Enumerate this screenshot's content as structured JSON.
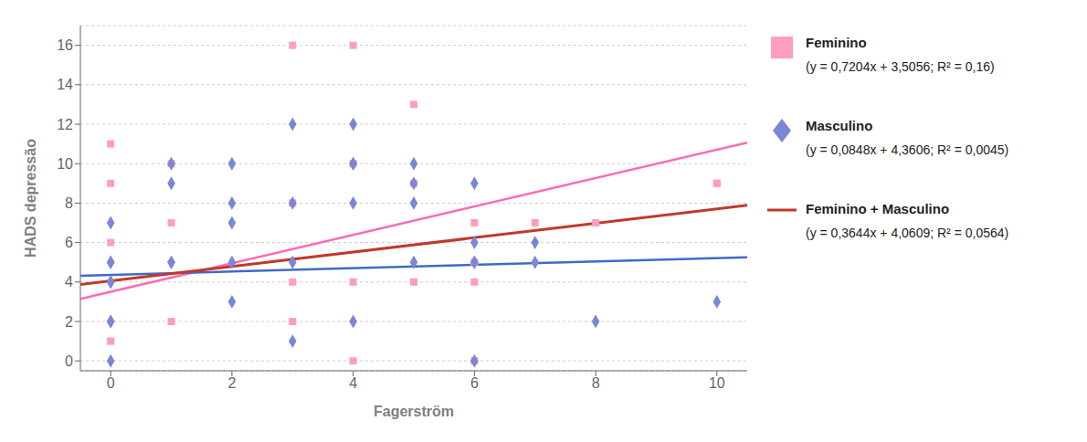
{
  "chart_data": {
    "type": "scatter",
    "xlabel": "Fagerström",
    "ylabel": "HADS depressão",
    "xlim": [
      -0.5,
      10.5
    ],
    "ylim": [
      -0.5,
      17
    ],
    "xticks": [
      0,
      2,
      4,
      6,
      8,
      10
    ],
    "yticks": [
      0,
      2,
      4,
      6,
      8,
      10,
      12,
      14,
      16
    ],
    "grid": "y",
    "series": [
      {
        "name": "Feminino",
        "type": "scatter",
        "marker": "square",
        "color": "#FF9DC0",
        "x": [
          0,
          0,
          0,
          0,
          1,
          1,
          1,
          3,
          3,
          3,
          3,
          4,
          4,
          4,
          4,
          5,
          5,
          5,
          6,
          6,
          6,
          6,
          7,
          8,
          10,
          10
        ],
        "values": [
          11,
          9,
          6,
          1,
          10,
          7,
          2,
          16,
          8,
          4,
          2,
          10,
          4,
          0,
          16,
          9,
          4,
          13,
          7,
          5,
          4,
          0,
          7,
          7,
          9,
          9
        ]
      },
      {
        "name": "Masculino",
        "type": "scatter",
        "marker": "diamond",
        "color": "#7B86D4",
        "x": [
          0,
          0,
          0,
          0,
          0,
          0,
          0,
          0,
          1,
          1,
          1,
          1,
          2,
          2,
          2,
          2,
          2,
          3,
          3,
          3,
          3,
          4,
          4,
          4,
          4,
          4,
          5,
          5,
          5,
          5,
          6,
          6,
          6,
          6,
          6,
          7,
          7,
          8,
          10
        ],
        "values": [
          7,
          5,
          5,
          4,
          4,
          2,
          2,
          0,
          10,
          9,
          5,
          5,
          10,
          8,
          7,
          5,
          3,
          12,
          8,
          5,
          1,
          12,
          10,
          10,
          8,
          2,
          10,
          9,
          8,
          5,
          9,
          6,
          5,
          5,
          0,
          6,
          5,
          2,
          3
        ]
      },
      {
        "type": "line",
        "color": "#FF69B4",
        "x": [
          -0.5,
          10.5
        ],
        "values": [
          3.1454,
          11.0698
        ]
      },
      {
        "type": "line",
        "color": "#4169C8",
        "x": [
          -0.5,
          10.5
        ],
        "values": [
          4.3182,
          5.251
        ]
      },
      {
        "name": "Feminino + Masculino",
        "type": "line",
        "color": "#C0392B",
        "x": [
          -0.5,
          10.5
        ],
        "values": [
          3.8787,
          7.8871
        ]
      }
    ],
    "annotations": [
      "(y = 0,7204x + 3,5056; R² = 0,16)",
      "(y = 0,0848x + 4,3606; R² = 0,0045)",
      "(y = 0,3644x + 4,0609; R² = 0,0564)"
    ]
  }
}
